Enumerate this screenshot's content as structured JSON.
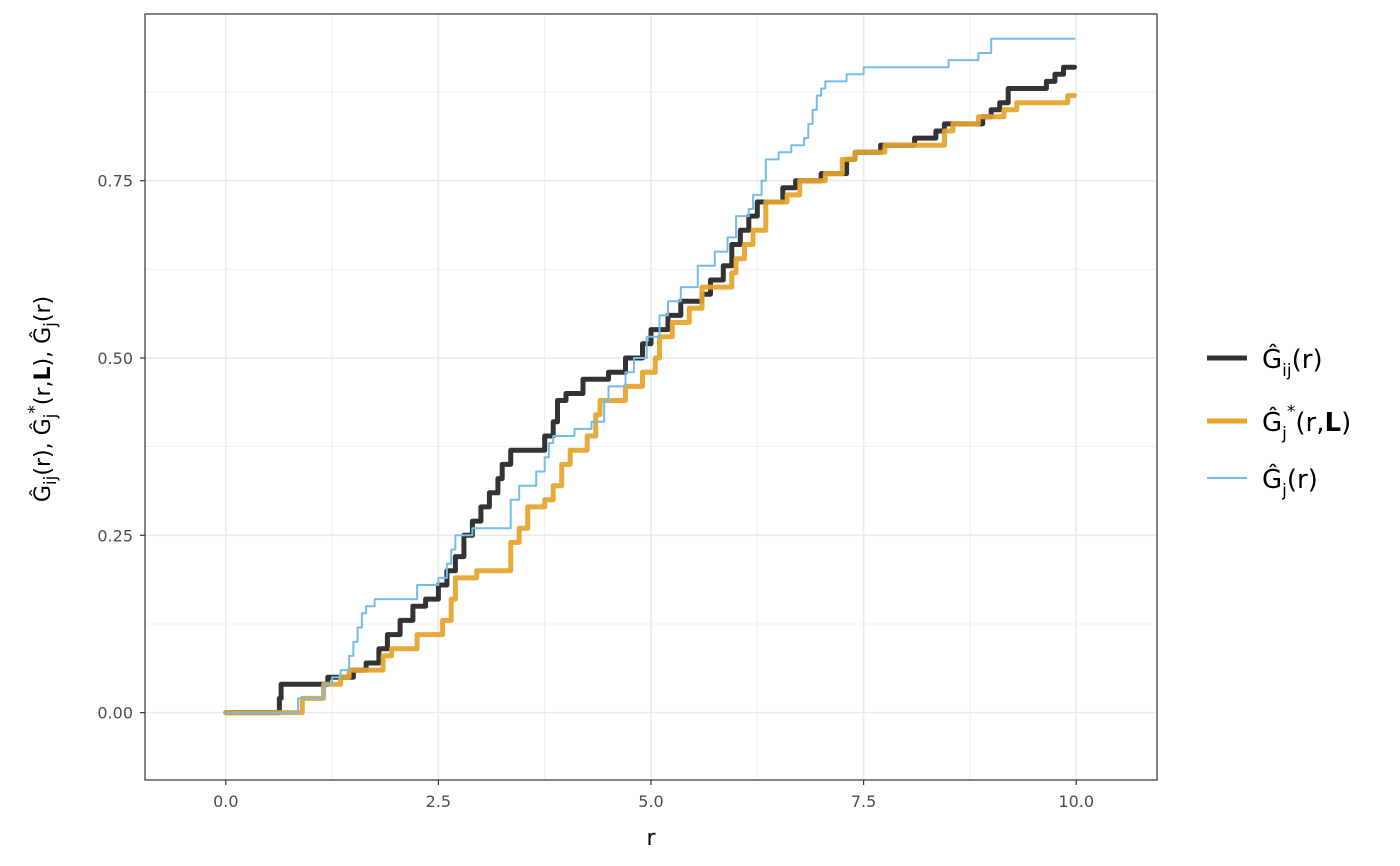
{
  "chart_data": {
    "type": "line",
    "xlabel": "r",
    "ylabel": {
      "parts": [
        "Ĝ",
        "ij",
        "(r), ",
        "Ĝ",
        "j",
        "*",
        "(r,",
        "L",
        "), ",
        "Ĝ",
        "j",
        "(r)"
      ]
    },
    "xlim": [
      -0.95,
      10.95
    ],
    "ylim": [
      -0.095,
      0.985
    ],
    "x_ticks": [
      0,
      2.5,
      5,
      7.5,
      10
    ],
    "x_tick_labels": [
      "0.0",
      "2.5",
      "5.0",
      "7.5",
      "10.0"
    ],
    "y_ticks": [
      0,
      0.25,
      0.5,
      0.75
    ],
    "y_tick_labels": [
      "0.00",
      "0.25",
      "0.50",
      "0.75"
    ],
    "grid": true,
    "legend_position": "right",
    "series": [
      {
        "name": "Ĝij(r)",
        "legend": {
          "base": "Ĝ",
          "sub": "ij",
          "tail": "(r)"
        },
        "color": "#333333",
        "width": 5,
        "points": [
          [
            0,
            0
          ],
          [
            0.63,
            0
          ],
          [
            0.63,
            0.02
          ],
          [
            0.65,
            0.02
          ],
          [
            0.65,
            0.04
          ],
          [
            1.2,
            0.04
          ],
          [
            1.2,
            0.05
          ],
          [
            1.5,
            0.05
          ],
          [
            1.5,
            0.06
          ],
          [
            1.65,
            0.06
          ],
          [
            1.65,
            0.07
          ],
          [
            1.8,
            0.07
          ],
          [
            1.8,
            0.09
          ],
          [
            1.9,
            0.09
          ],
          [
            1.9,
            0.11
          ],
          [
            2.05,
            0.11
          ],
          [
            2.05,
            0.13
          ],
          [
            2.2,
            0.13
          ],
          [
            2.2,
            0.15
          ],
          [
            2.35,
            0.15
          ],
          [
            2.35,
            0.16
          ],
          [
            2.5,
            0.16
          ],
          [
            2.5,
            0.18
          ],
          [
            2.6,
            0.18
          ],
          [
            2.6,
            0.2
          ],
          [
            2.7,
            0.2
          ],
          [
            2.7,
            0.22
          ],
          [
            2.8,
            0.22
          ],
          [
            2.8,
            0.25
          ],
          [
            2.9,
            0.25
          ],
          [
            2.9,
            0.27
          ],
          [
            3.0,
            0.27
          ],
          [
            3.0,
            0.29
          ],
          [
            3.1,
            0.29
          ],
          [
            3.1,
            0.31
          ],
          [
            3.2,
            0.31
          ],
          [
            3.2,
            0.33
          ],
          [
            3.25,
            0.33
          ],
          [
            3.25,
            0.35
          ],
          [
            3.35,
            0.35
          ],
          [
            3.35,
            0.37
          ],
          [
            3.75,
            0.37
          ],
          [
            3.75,
            0.39
          ],
          [
            3.85,
            0.39
          ],
          [
            3.85,
            0.41
          ],
          [
            3.9,
            0.41
          ],
          [
            3.9,
            0.44
          ],
          [
            4.0,
            0.44
          ],
          [
            4.0,
            0.45
          ],
          [
            4.2,
            0.45
          ],
          [
            4.2,
            0.47
          ],
          [
            4.5,
            0.47
          ],
          [
            4.5,
            0.48
          ],
          [
            4.7,
            0.48
          ],
          [
            4.7,
            0.5
          ],
          [
            4.9,
            0.5
          ],
          [
            4.9,
            0.52
          ],
          [
            5.0,
            0.52
          ],
          [
            5.0,
            0.54
          ],
          [
            5.2,
            0.54
          ],
          [
            5.2,
            0.56
          ],
          [
            5.35,
            0.56
          ],
          [
            5.35,
            0.58
          ],
          [
            5.6,
            0.58
          ],
          [
            5.6,
            0.59
          ],
          [
            5.7,
            0.59
          ],
          [
            5.7,
            0.61
          ],
          [
            5.85,
            0.61
          ],
          [
            5.85,
            0.63
          ],
          [
            5.95,
            0.63
          ],
          [
            5.95,
            0.66
          ],
          [
            6.05,
            0.66
          ],
          [
            6.05,
            0.68
          ],
          [
            6.15,
            0.68
          ],
          [
            6.15,
            0.7
          ],
          [
            6.25,
            0.7
          ],
          [
            6.25,
            0.72
          ],
          [
            6.55,
            0.72
          ],
          [
            6.55,
            0.74
          ],
          [
            6.7,
            0.74
          ],
          [
            6.7,
            0.75
          ],
          [
            7.0,
            0.75
          ],
          [
            7.0,
            0.76
          ],
          [
            7.3,
            0.76
          ],
          [
            7.3,
            0.78
          ],
          [
            7.4,
            0.78
          ],
          [
            7.4,
            0.79
          ],
          [
            7.7,
            0.79
          ],
          [
            7.7,
            0.8
          ],
          [
            8.1,
            0.8
          ],
          [
            8.1,
            0.81
          ],
          [
            8.35,
            0.81
          ],
          [
            8.35,
            0.82
          ],
          [
            8.45,
            0.82
          ],
          [
            8.45,
            0.83
          ],
          [
            8.9,
            0.83
          ],
          [
            8.9,
            0.84
          ],
          [
            9.0,
            0.84
          ],
          [
            9.0,
            0.85
          ],
          [
            9.1,
            0.85
          ],
          [
            9.1,
            0.86
          ],
          [
            9.2,
            0.86
          ],
          [
            9.2,
            0.88
          ],
          [
            9.65,
            0.88
          ],
          [
            9.65,
            0.89
          ],
          [
            9.75,
            0.89
          ],
          [
            9.75,
            0.9
          ],
          [
            9.85,
            0.9
          ],
          [
            9.85,
            0.91
          ],
          [
            9.98,
            0.91
          ]
        ]
      },
      {
        "name": "Ĝj*(r,L)",
        "legend": {
          "base": "Ĝ",
          "sub": "j",
          "sup": "*",
          "tail": "(r,",
          "bold": "L",
          "tail2": ")"
        },
        "color": "#e5a42b",
        "width": 5,
        "points": [
          [
            0,
            0
          ],
          [
            0.9,
            0
          ],
          [
            0.9,
            0.02
          ],
          [
            1.15,
            0.02
          ],
          [
            1.15,
            0.04
          ],
          [
            1.35,
            0.04
          ],
          [
            1.35,
            0.05
          ],
          [
            1.45,
            0.05
          ],
          [
            1.45,
            0.06
          ],
          [
            1.85,
            0.06
          ],
          [
            1.85,
            0.08
          ],
          [
            1.95,
            0.08
          ],
          [
            1.95,
            0.09
          ],
          [
            2.25,
            0.09
          ],
          [
            2.25,
            0.11
          ],
          [
            2.55,
            0.11
          ],
          [
            2.55,
            0.13
          ],
          [
            2.65,
            0.13
          ],
          [
            2.65,
            0.16
          ],
          [
            2.7,
            0.16
          ],
          [
            2.7,
            0.19
          ],
          [
            2.95,
            0.19
          ],
          [
            2.95,
            0.2
          ],
          [
            3.35,
            0.2
          ],
          [
            3.35,
            0.24
          ],
          [
            3.45,
            0.24
          ],
          [
            3.45,
            0.26
          ],
          [
            3.55,
            0.26
          ],
          [
            3.55,
            0.29
          ],
          [
            3.75,
            0.29
          ],
          [
            3.75,
            0.3
          ],
          [
            3.85,
            0.3
          ],
          [
            3.85,
            0.32
          ],
          [
            3.95,
            0.32
          ],
          [
            3.95,
            0.35
          ],
          [
            4.05,
            0.35
          ],
          [
            4.05,
            0.37
          ],
          [
            4.25,
            0.37
          ],
          [
            4.25,
            0.39
          ],
          [
            4.35,
            0.39
          ],
          [
            4.35,
            0.42
          ],
          [
            4.4,
            0.42
          ],
          [
            4.4,
            0.44
          ],
          [
            4.7,
            0.44
          ],
          [
            4.7,
            0.46
          ],
          [
            4.9,
            0.46
          ],
          [
            4.9,
            0.48
          ],
          [
            5.05,
            0.48
          ],
          [
            5.05,
            0.5
          ],
          [
            5.1,
            0.5
          ],
          [
            5.1,
            0.53
          ],
          [
            5.25,
            0.53
          ],
          [
            5.25,
            0.55
          ],
          [
            5.45,
            0.55
          ],
          [
            5.45,
            0.57
          ],
          [
            5.6,
            0.57
          ],
          [
            5.6,
            0.6
          ],
          [
            5.95,
            0.6
          ],
          [
            5.95,
            0.62
          ],
          [
            6.0,
            0.62
          ],
          [
            6.0,
            0.64
          ],
          [
            6.1,
            0.64
          ],
          [
            6.1,
            0.66
          ],
          [
            6.2,
            0.66
          ],
          [
            6.2,
            0.68
          ],
          [
            6.35,
            0.68
          ],
          [
            6.35,
            0.72
          ],
          [
            6.6,
            0.72
          ],
          [
            6.6,
            0.73
          ],
          [
            6.75,
            0.73
          ],
          [
            6.75,
            0.75
          ],
          [
            7.05,
            0.75
          ],
          [
            7.05,
            0.76
          ],
          [
            7.25,
            0.76
          ],
          [
            7.25,
            0.78
          ],
          [
            7.4,
            0.78
          ],
          [
            7.4,
            0.79
          ],
          [
            7.75,
            0.79
          ],
          [
            7.75,
            0.8
          ],
          [
            8.45,
            0.8
          ],
          [
            8.45,
            0.82
          ],
          [
            8.55,
            0.82
          ],
          [
            8.55,
            0.83
          ],
          [
            8.85,
            0.83
          ],
          [
            8.85,
            0.84
          ],
          [
            9.15,
            0.84
          ],
          [
            9.15,
            0.85
          ],
          [
            9.3,
            0.85
          ],
          [
            9.3,
            0.86
          ],
          [
            9.9,
            0.86
          ],
          [
            9.9,
            0.87
          ],
          [
            9.98,
            0.87
          ]
        ]
      },
      {
        "name": "Ĝj(r)",
        "legend": {
          "base": "Ĝ",
          "sub": "j",
          "tail": "(r)"
        },
        "color": "#74bde9",
        "width": 2,
        "points": [
          [
            0,
            0
          ],
          [
            0.85,
            0
          ],
          [
            0.85,
            0.02
          ],
          [
            1.15,
            0.02
          ],
          [
            1.15,
            0.04
          ],
          [
            1.25,
            0.04
          ],
          [
            1.25,
            0.05
          ],
          [
            1.35,
            0.05
          ],
          [
            1.35,
            0.06
          ],
          [
            1.45,
            0.06
          ],
          [
            1.45,
            0.08
          ],
          [
            1.5,
            0.08
          ],
          [
            1.5,
            0.1
          ],
          [
            1.55,
            0.1
          ],
          [
            1.55,
            0.12
          ],
          [
            1.6,
            0.12
          ],
          [
            1.6,
            0.14
          ],
          [
            1.65,
            0.14
          ],
          [
            1.65,
            0.15
          ],
          [
            1.75,
            0.15
          ],
          [
            1.75,
            0.16
          ],
          [
            2.25,
            0.16
          ],
          [
            2.25,
            0.18
          ],
          [
            2.5,
            0.18
          ],
          [
            2.5,
            0.19
          ],
          [
            2.6,
            0.19
          ],
          [
            2.6,
            0.21
          ],
          [
            2.65,
            0.21
          ],
          [
            2.65,
            0.23
          ],
          [
            2.7,
            0.23
          ],
          [
            2.7,
            0.25
          ],
          [
            2.9,
            0.25
          ],
          [
            2.9,
            0.26
          ],
          [
            3.35,
            0.26
          ],
          [
            3.35,
            0.3
          ],
          [
            3.45,
            0.3
          ],
          [
            3.45,
            0.32
          ],
          [
            3.65,
            0.32
          ],
          [
            3.65,
            0.34
          ],
          [
            3.75,
            0.34
          ],
          [
            3.75,
            0.36
          ],
          [
            3.8,
            0.36
          ],
          [
            3.8,
            0.38
          ],
          [
            3.85,
            0.38
          ],
          [
            3.85,
            0.39
          ],
          [
            4.1,
            0.39
          ],
          [
            4.1,
            0.4
          ],
          [
            4.3,
            0.4
          ],
          [
            4.3,
            0.41
          ],
          [
            4.45,
            0.41
          ],
          [
            4.45,
            0.44
          ],
          [
            4.5,
            0.44
          ],
          [
            4.5,
            0.46
          ],
          [
            4.7,
            0.46
          ],
          [
            4.7,
            0.48
          ],
          [
            4.8,
            0.48
          ],
          [
            4.8,
            0.5
          ],
          [
            4.95,
            0.5
          ],
          [
            4.95,
            0.53
          ],
          [
            5.1,
            0.53
          ],
          [
            5.1,
            0.56
          ],
          [
            5.2,
            0.56
          ],
          [
            5.2,
            0.58
          ],
          [
            5.35,
            0.58
          ],
          [
            5.35,
            0.6
          ],
          [
            5.55,
            0.6
          ],
          [
            5.55,
            0.63
          ],
          [
            5.75,
            0.63
          ],
          [
            5.75,
            0.65
          ],
          [
            5.9,
            0.65
          ],
          [
            5.9,
            0.67
          ],
          [
            6.0,
            0.67
          ],
          [
            6.0,
            0.7
          ],
          [
            6.15,
            0.7
          ],
          [
            6.15,
            0.71
          ],
          [
            6.2,
            0.71
          ],
          [
            6.2,
            0.73
          ],
          [
            6.3,
            0.73
          ],
          [
            6.3,
            0.75
          ],
          [
            6.35,
            0.75
          ],
          [
            6.35,
            0.78
          ],
          [
            6.5,
            0.78
          ],
          [
            6.5,
            0.79
          ],
          [
            6.65,
            0.79
          ],
          [
            6.65,
            0.8
          ],
          [
            6.8,
            0.8
          ],
          [
            6.8,
            0.81
          ],
          [
            6.85,
            0.81
          ],
          [
            6.85,
            0.83
          ],
          [
            6.9,
            0.83
          ],
          [
            6.9,
            0.85
          ],
          [
            6.95,
            0.85
          ],
          [
            6.95,
            0.87
          ],
          [
            7.0,
            0.87
          ],
          [
            7.0,
            0.88
          ],
          [
            7.05,
            0.88
          ],
          [
            7.05,
            0.89
          ],
          [
            7.3,
            0.89
          ],
          [
            7.3,
            0.9
          ],
          [
            7.5,
            0.9
          ],
          [
            7.5,
            0.91
          ],
          [
            8.5,
            0.91
          ],
          [
            8.5,
            0.92
          ],
          [
            8.85,
            0.92
          ],
          [
            8.85,
            0.93
          ],
          [
            9.0,
            0.93
          ],
          [
            9.0,
            0.95
          ],
          [
            9.98,
            0.95
          ]
        ]
      }
    ]
  }
}
